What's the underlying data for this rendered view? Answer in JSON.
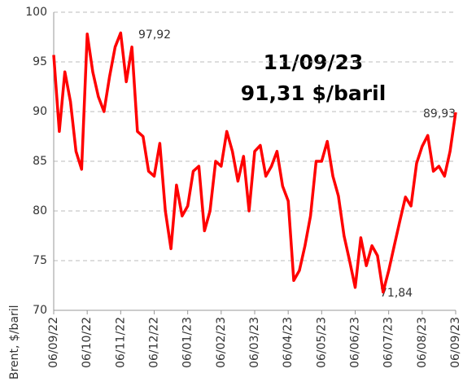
{
  "chart_data": {
    "type": "line",
    "y_label": "Brent, $/baril",
    "annotations": [
      "97,92",
      "11/09/23",
      "91,31 $/baril",
      "71,84",
      "89,93"
    ],
    "categories": [
      "06/09/22",
      null,
      null,
      null,
      null,
      null,
      "06/10/22",
      null,
      null,
      null,
      null,
      null,
      "06/11/22",
      null,
      null,
      null,
      null,
      null,
      "06/12/22",
      null,
      null,
      null,
      null,
      null,
      "06/01/23",
      null,
      null,
      null,
      null,
      null,
      "06/02/23",
      null,
      null,
      null,
      null,
      null,
      "06/03/23",
      null,
      null,
      null,
      null,
      null,
      "06/04/23",
      null,
      null,
      null,
      null,
      null,
      "06/05/23",
      null,
      null,
      null,
      null,
      null,
      "06/06/23",
      null,
      null,
      null,
      null,
      null,
      "06/07/23",
      null,
      null,
      null,
      null,
      null,
      "06/08/23",
      null,
      null,
      null,
      null,
      null,
      "06/09/23"
    ],
    "series": [
      {
        "name": "Brent",
        "color": "#ff0000",
        "values": [
          95.7,
          88.0,
          94.0,
          91.0,
          86.0,
          84.2,
          97.8,
          94.0,
          91.5,
          90.0,
          93.5,
          96.5,
          97.92,
          93.0,
          96.5,
          88.0,
          87.5,
          84.0,
          83.5,
          86.8,
          80.0,
          76.2,
          82.6,
          79.5,
          80.5,
          84.0,
          84.5,
          78.0,
          80.0,
          85.0,
          84.5,
          88.0,
          86.0,
          83.0,
          85.5,
          80.0,
          86.0,
          86.6,
          83.5,
          84.5,
          86.0,
          82.5,
          81.0,
          73.0,
          74.0,
          76.5,
          79.5,
          85.0,
          85.0,
          87.0,
          83.5,
          81.5,
          77.5,
          75.0,
          72.3,
          77.3,
          74.5,
          76.5,
          75.5,
          71.84,
          74.0,
          76.5,
          79.0,
          81.4,
          80.5,
          84.8,
          86.5,
          87.6,
          84.0,
          84.5,
          83.5,
          86.0,
          89.93
        ]
      }
    ],
    "ylim": [
      70,
      100
    ],
    "yticks": [
      70,
      75,
      80,
      85,
      90,
      95,
      100
    ],
    "grid": true
  }
}
